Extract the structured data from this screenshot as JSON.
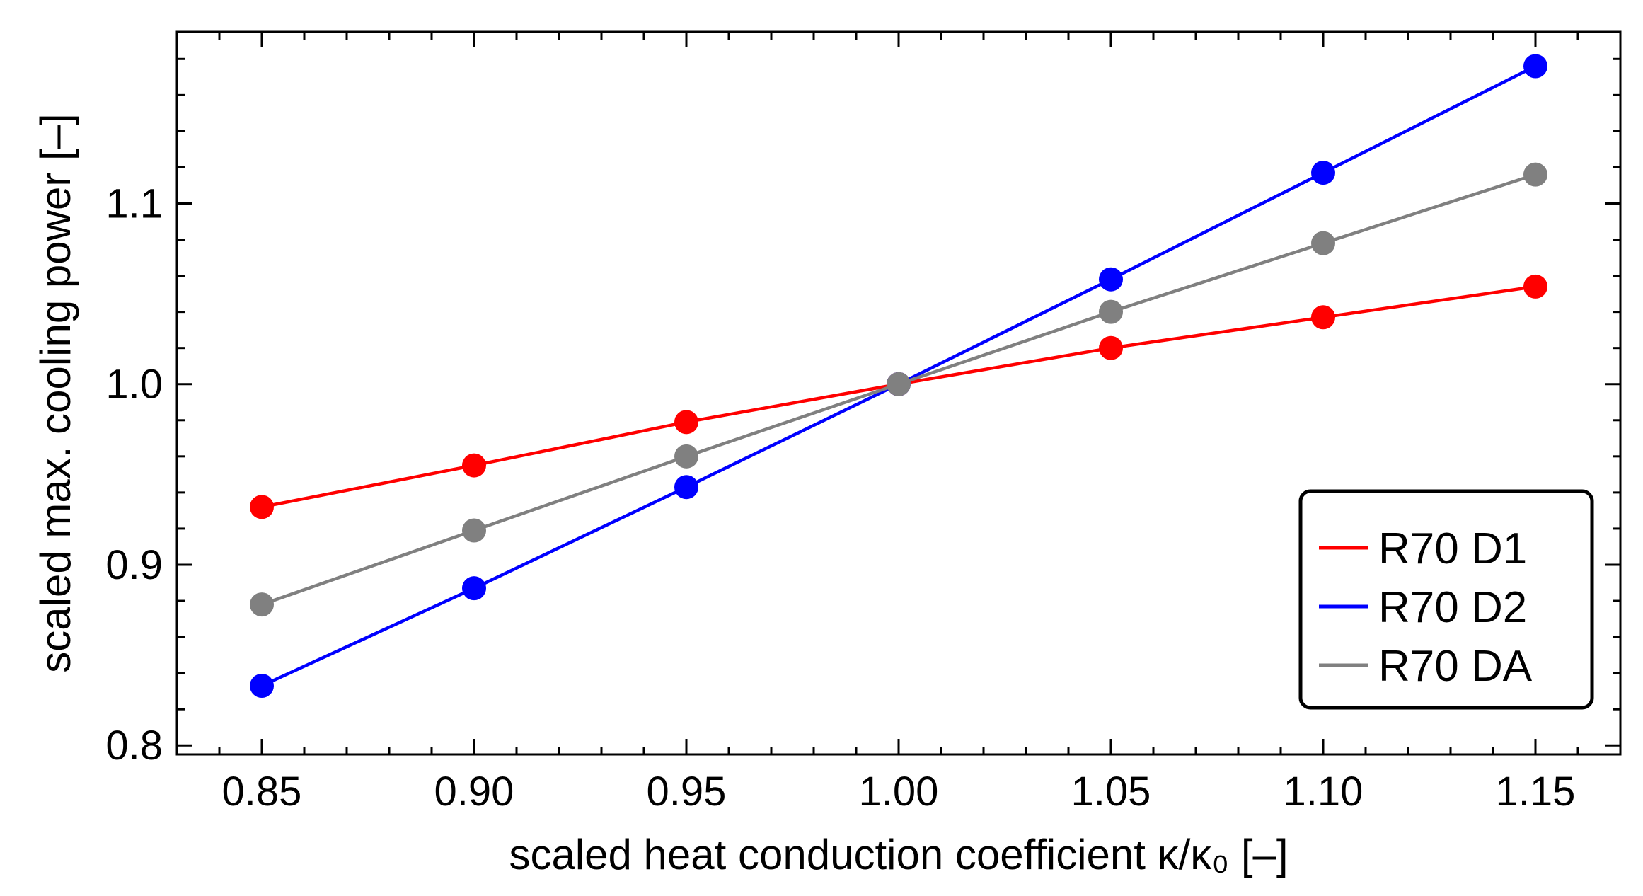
{
  "chart_data": {
    "type": "line",
    "title": "",
    "xlabel": "scaled heat conduction coefficient κ/κ₀ [–]",
    "ylabel": "scaled max. cooling power [–]",
    "xlim": [
      0.83,
      1.17
    ],
    "ylim": [
      0.795,
      1.195
    ],
    "x": [
      0.85,
      0.9,
      0.95,
      1.0,
      1.05,
      1.1,
      1.15
    ],
    "x_ticks": [
      0.85,
      0.9,
      0.95,
      1.0,
      1.05,
      1.1,
      1.15
    ],
    "x_tick_labels": [
      "0.85",
      "0.90",
      "0.95",
      "1.00",
      "1.05",
      "1.10",
      "1.15"
    ],
    "y_ticks": [
      0.8,
      0.9,
      1.0,
      1.1
    ],
    "y_tick_labels": [
      "0.8",
      "0.9",
      "1.0",
      "1.1"
    ],
    "grid": false,
    "legend_position": "bottom-right",
    "series": [
      {
        "name": "R70 D1",
        "color": "#ff0000",
        "values": [
          0.932,
          0.955,
          0.979,
          1.0,
          1.02,
          1.037,
          1.054
        ]
      },
      {
        "name": "R70 D2",
        "color": "#0000ff",
        "values": [
          0.833,
          0.887,
          0.943,
          1.0,
          1.058,
          1.117,
          1.176
        ]
      },
      {
        "name": "R70 DA",
        "color": "#808080",
        "values": [
          0.878,
          0.919,
          0.96,
          1.0,
          1.04,
          1.078,
          1.116
        ]
      }
    ]
  }
}
